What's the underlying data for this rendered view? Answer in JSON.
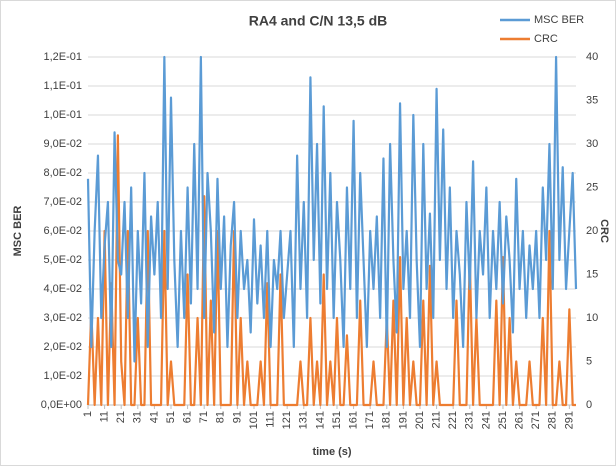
{
  "chart_data": {
    "type": "line",
    "title": "RA4 and C/N 13,5 dB",
    "x_label": "time (s)",
    "y_label": "MSC BER",
    "y2_label": "CRC",
    "x": [
      1,
      3,
      5,
      7,
      9,
      11,
      13,
      15,
      17,
      19,
      21,
      23,
      25,
      27,
      29,
      31,
      33,
      35,
      37,
      39,
      41,
      43,
      45,
      47,
      49,
      51,
      53,
      55,
      57,
      59,
      61,
      63,
      65,
      67,
      69,
      71,
      73,
      75,
      77,
      79,
      81,
      83,
      85,
      87,
      89,
      91,
      93,
      95,
      97,
      99,
      101,
      103,
      105,
      107,
      109,
      111,
      113,
      115,
      117,
      119,
      121,
      123,
      125,
      127,
      129,
      131,
      133,
      135,
      137,
      139,
      141,
      143,
      145,
      147,
      149,
      151,
      153,
      155,
      157,
      159,
      161,
      163,
      165,
      167,
      169,
      171,
      173,
      175,
      177,
      179,
      181,
      183,
      185,
      187,
      189,
      191,
      193,
      195,
      197,
      199,
      201,
      203,
      205,
      207,
      209,
      211,
      213,
      215,
      217,
      219,
      221,
      223,
      225,
      227,
      229,
      231,
      233,
      235,
      237,
      239,
      241,
      243,
      245,
      247,
      249,
      251,
      253,
      255,
      257,
      259,
      261,
      263,
      265,
      267,
      269,
      271,
      273,
      275,
      277,
      279,
      281,
      283,
      285,
      287,
      289,
      291,
      293,
      295
    ],
    "xlim": [
      1,
      295
    ],
    "xticks": [
      1,
      11,
      21,
      31,
      41,
      51,
      61,
      71,
      81,
      91,
      101,
      111,
      121,
      131,
      141,
      151,
      161,
      171,
      181,
      191,
      201,
      211,
      221,
      231,
      241,
      251,
      261,
      271,
      281,
      291
    ],
    "ylim": [
      0,
      0.12
    ],
    "yticks": [
      {
        "value": 0,
        "label": "0,0E+00"
      },
      {
        "value": 0.01,
        "label": "1,0E-02"
      },
      {
        "value": 0.02,
        "label": "2,0E-02"
      },
      {
        "value": 0.03,
        "label": "3,0E-02"
      },
      {
        "value": 0.04,
        "label": "4,0E-02"
      },
      {
        "value": 0.05,
        "label": "5,0E-02"
      },
      {
        "value": 0.06,
        "label": "6,0E-02"
      },
      {
        "value": 0.07,
        "label": "7,0E-02"
      },
      {
        "value": 0.08,
        "label": "8,0E-02"
      },
      {
        "value": 0.09,
        "label": "9,0E-02"
      },
      {
        "value": 0.1,
        "label": "1,0E-01"
      },
      {
        "value": 0.11,
        "label": "1,1E-01"
      },
      {
        "value": 0.12,
        "label": "1,2E-01"
      }
    ],
    "y2lim": [
      0,
      40
    ],
    "y2ticks": [
      0,
      5,
      10,
      15,
      20,
      25,
      30,
      35,
      40
    ],
    "grid": true,
    "legend": "top-right",
    "series": [
      {
        "name": "MSC BER",
        "color": "#5b9bd5",
        "values": [
          0.078,
          0.02,
          0.06,
          0.086,
          0.03,
          0.055,
          0.07,
          0.02,
          0.094,
          0.05,
          0.045,
          0.07,
          0.03,
          0.075,
          0.015,
          0.06,
          0.035,
          0.08,
          0.02,
          0.065,
          0.045,
          0.07,
          0.03,
          0.12,
          0.04,
          0.106,
          0.05,
          0.02,
          0.06,
          0.03,
          0.075,
          0.035,
          0.09,
          0.04,
          0.12,
          0.03,
          0.08,
          0.06,
          0.025,
          0.078,
          0.04,
          0.065,
          0.02,
          0.055,
          0.07,
          0.03,
          0.06,
          0.04,
          0.05,
          0.025,
          0.064,
          0.035,
          0.055,
          0.03,
          0.06,
          0.02,
          0.05,
          0.04,
          0.06,
          0.03,
          0.045,
          0.06,
          0.02,
          0.086,
          0.04,
          0.07,
          0.03,
          0.113,
          0.05,
          0.09,
          0.035,
          0.103,
          0.04,
          0.08,
          0.03,
          0.07,
          0.05,
          0.02,
          0.075,
          0.04,
          0.098,
          0.03,
          0.08,
          0.05,
          0.02,
          0.06,
          0.04,
          0.065,
          0.03,
          0.085,
          0.02,
          0.09,
          0.05,
          0.025,
          0.104,
          0.04,
          0.06,
          0.03,
          0.1,
          0.05,
          0.02,
          0.09,
          0.04,
          0.066,
          0.03,
          0.109,
          0.05,
          0.095,
          0.04,
          0.075,
          0.03,
          0.06,
          0.045,
          0.02,
          0.07,
          0.04,
          0.084,
          0.03,
          0.06,
          0.045,
          0.075,
          0.03,
          0.06,
          0.04,
          0.07,
          0.035,
          0.065,
          0.05,
          0.025,
          0.078,
          0.04,
          0.06,
          0.03,
          0.055,
          0.04,
          0.06,
          0.03,
          0.075,
          0.05,
          0.09,
          0.04,
          0.12,
          0.05,
          0.082,
          0.04,
          0.06,
          0.08,
          0.04
        ]
      },
      {
        "name": "CRC",
        "color": "#ed7d31",
        "axis": "y2",
        "values": [
          0,
          11,
          0,
          10,
          0,
          20,
          0,
          14,
          0,
          31,
          5,
          0,
          20,
          0,
          0,
          10,
          0,
          0,
          20,
          0,
          0,
          0,
          0,
          20,
          0,
          5,
          0,
          0,
          0,
          0,
          15,
          0,
          0,
          10,
          0,
          24,
          0,
          12,
          0,
          20,
          0,
          0,
          0,
          0,
          20,
          0,
          10,
          0,
          5,
          0,
          0,
          0,
          5,
          0,
          14,
          0,
          0,
          0,
          15,
          0,
          0,
          0,
          0,
          0,
          5,
          0,
          0,
          10,
          0,
          5,
          0,
          15,
          0,
          5,
          0,
          10,
          0,
          0,
          8,
          0,
          0,
          0,
          12,
          0,
          0,
          0,
          5,
          0,
          0,
          0,
          10,
          0,
          12,
          0,
          17,
          0,
          10,
          0,
          5,
          0,
          0,
          12,
          0,
          16,
          0,
          5,
          0,
          0,
          0,
          0,
          0,
          12,
          0,
          0,
          0,
          17,
          0,
          10,
          0,
          0,
          0,
          0,
          0,
          12,
          0,
          17,
          0,
          10,
          0,
          5,
          0,
          0,
          0,
          5,
          0,
          0,
          0,
          10,
          0,
          20,
          0,
          0,
          5,
          0,
          0,
          11,
          0,
          0
        ]
      }
    ]
  }
}
